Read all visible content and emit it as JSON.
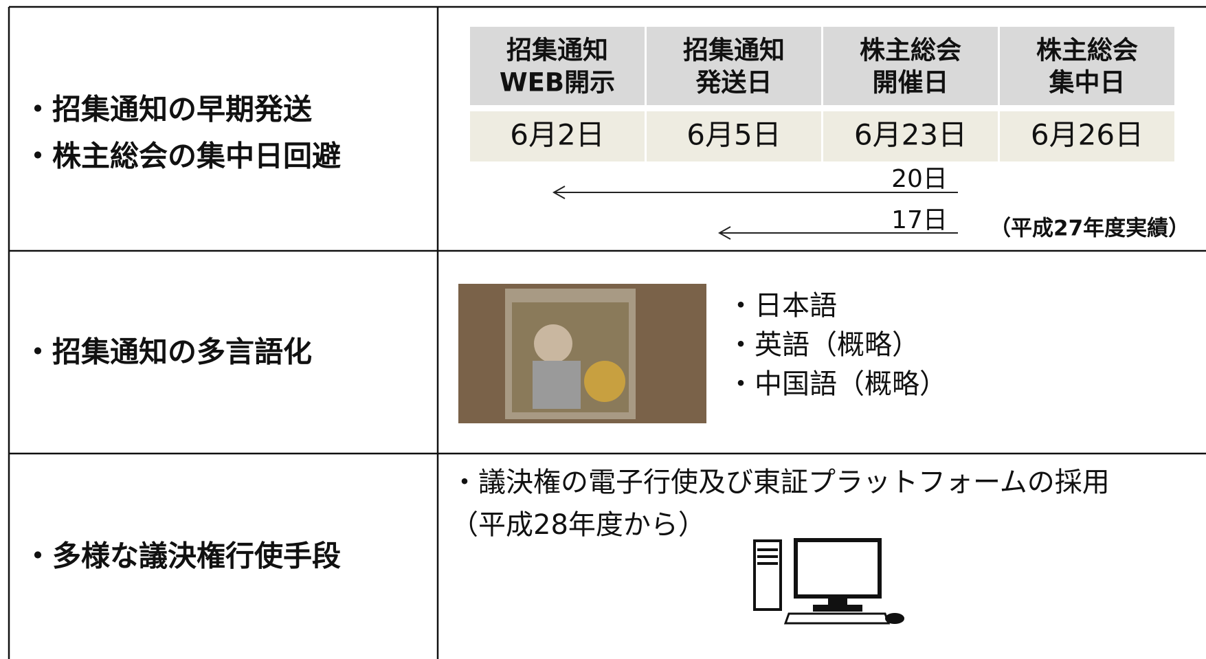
{
  "rows": [
    {
      "label": [
        "・招集通知の早期発送",
        "・株主総会の集中日回避"
      ],
      "schedule": {
        "headers": [
          [
            "招集通知",
            "WEB開示"
          ],
          [
            "招集通知",
            "発送日"
          ],
          [
            "株主総会",
            "開催日"
          ],
          [
            "株主総会",
            "集中日"
          ]
        ],
        "dates": [
          "6月2日",
          "6月5日",
          "6月23日",
          "6月26日"
        ],
        "intervals": [
          "20日",
          "17日"
        ],
        "note": "（平成27年度実績）"
      }
    },
    {
      "label": [
        "・招集通知の多言語化"
      ],
      "languages": [
        "・日本語",
        "・英語（概略）",
        "・中国語（概略）"
      ]
    },
    {
      "label": [
        "・多様な議決権行使手段"
      ],
      "text": [
        "・議決権の電子行使及び東証プラットフォームの採用",
        "（平成28年度から）"
      ]
    }
  ]
}
